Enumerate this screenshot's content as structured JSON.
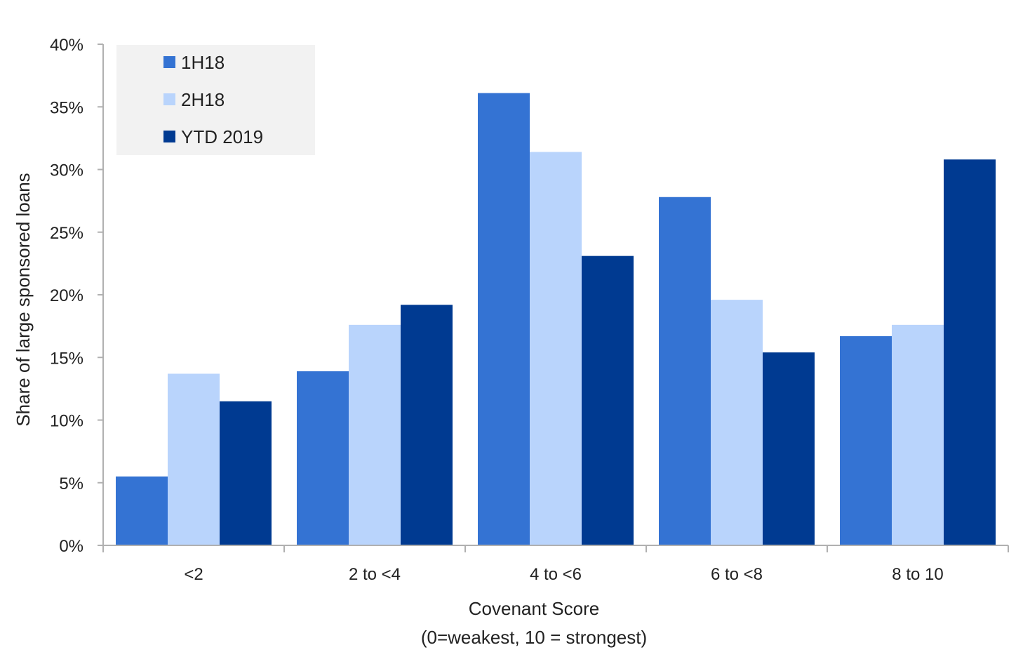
{
  "chart_data": {
    "type": "bar",
    "categories": [
      "<2",
      "2 to <4",
      "4 to <6",
      "6 to <8",
      "8 to 10"
    ],
    "series": [
      {
        "name": "1H18",
        "color": "#3473d3",
        "values": [
          5.5,
          13.9,
          36.1,
          27.8,
          16.7
        ]
      },
      {
        "name": "2H18",
        "color": "#b9d4fc",
        "values": [
          13.7,
          17.6,
          31.4,
          19.6,
          17.6
        ]
      },
      {
        "name": "YTD 2019",
        "color": "#003a91",
        "values": [
          11.5,
          19.2,
          23.1,
          15.4,
          30.8
        ]
      }
    ],
    "ylim": [
      0,
      40
    ],
    "yticks": [
      0,
      5,
      10,
      15,
      20,
      25,
      30,
      35,
      40
    ],
    "ytick_labels": [
      "0%",
      "5%",
      "10%",
      "15%",
      "20%",
      "25%",
      "30%",
      "35%",
      "40%"
    ],
    "ylabel": "Share of large sponsored loans",
    "xlabel_line1": "Covenant Score",
    "xlabel_line2": "(0=weakest, 10 = strongest)",
    "legend_position": "top-left",
    "legend_background": "#f2f2f2",
    "axis_color": "#b0b0b0",
    "grid": false
  }
}
